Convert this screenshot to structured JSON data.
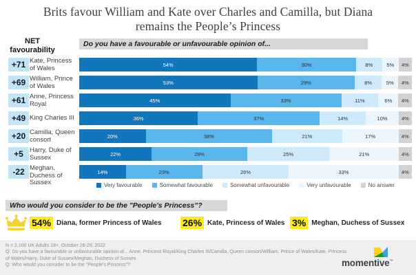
{
  "title": {
    "line1": "Brits favour William and Kate over Charles and Camilla, but Diana",
    "line2": "remains the People’s Princess"
  },
  "net_header": "NET favourability",
  "chart_data": {
    "type": "bar",
    "stacked": true,
    "orientation": "horizontal",
    "title": "Do you have a favourable or unfavourable opinion of...",
    "categories": [
      "Kate, Princess of Wales",
      "William, Prince of Wales",
      "Anne, Princess Royal",
      "King Charles III",
      "Camilla, Queen consort",
      "Harry, Duke of Sussex",
      "Meghan, Duchess of Sussex"
    ],
    "net_favourability_label": "NET favourability",
    "net_favourability": [
      "+71",
      "+69",
      "+61",
      "+49",
      "+20",
      "+5",
      "-22"
    ],
    "series": [
      {
        "name": "Very favourable",
        "color": "#1176bb",
        "text_color": "#ffffff",
        "values": [
          54,
          53,
          45,
          36,
          20,
          22,
          14
        ]
      },
      {
        "name": "Somewhat favourable",
        "color": "#5ab7ec",
        "text_color": "#1d2b3a",
        "values": [
          30,
          29,
          33,
          37,
          38,
          29,
          23
        ]
      },
      {
        "name": "Somewhat unfavourable",
        "color": "#cde9fb",
        "text_color": "#2a3138",
        "values": [
          8,
          8,
          11,
          14,
          21,
          25,
          26
        ]
      },
      {
        "name": "Very unfavourable",
        "color": "#eaf5fd",
        "text_color": "#2a3138",
        "values": [
          5,
          5,
          6,
          10,
          17,
          21,
          33
        ]
      },
      {
        "name": "No answer",
        "color": "#d2d2d2",
        "text_color": "#2a3138",
        "values": [
          4,
          4,
          4,
          4,
          4,
          4,
          4
        ]
      }
    ],
    "value_suffix": "%",
    "legend_position": "bottom",
    "badge_color": "#c3e3f7"
  },
  "question2": "Who would you consider to be the \"People's Princess\"?",
  "princess_results": [
    {
      "pct": "54%",
      "name": "Diana, former Princess of Wales"
    },
    {
      "pct": "26%",
      "name": "Kate, Princess of Wales"
    },
    {
      "pct": "3%",
      "name": "Meghan, Duchess of Sussex"
    }
  ],
  "highlight_color": "#fce920",
  "crown_color": "#f5d22b",
  "footer": {
    "line1": "N = 2,100 UK Adults 18+, October 26-29, 2022",
    "line2": "Q: Do you have a favourable or unfavourable opinion of... Anne, Princess Royal/King Charles III/Camilla, Queen consort/William, Prince of Wales/Kate, Princess of Wales/Harry, Duke of Sussex/Meghan, Duchess of Sussex",
    "line3": "Q: Who would you consider to be the \"People's Princess\"?",
    "brand": "momentive",
    "brand_tm": "™"
  }
}
